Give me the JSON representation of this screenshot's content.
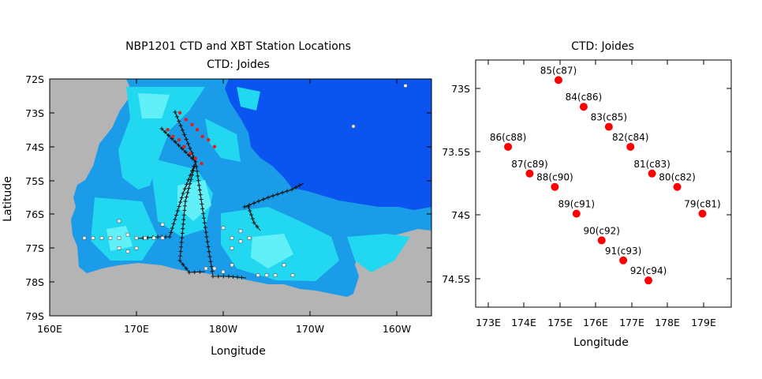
{
  "left_panel": {
    "title_line1": "NBP1201 CTD and XBT Station Locations",
    "title_line2": "CTD: Joides",
    "xlabel": "Longitude",
    "ylabel": "Latitude",
    "xticks": [
      "160E",
      "170E",
      "180W",
      "170W",
      "160W"
    ],
    "yticks": [
      "72S",
      "73S",
      "74S",
      "75S",
      "76S",
      "77S",
      "78S",
      "79S"
    ],
    "colors": {
      "land": "#b4b4b4",
      "open_ocean": "#0a54f0",
      "shelf": "#22d8f0",
      "ctd_selected": "#e02020",
      "ctd_track": "#000000",
      "xbt": "#ffffff"
    }
  },
  "right_panel": {
    "title": "CTD: Joides",
    "xlabel": "Longitude",
    "xticks": [
      "173E",
      "174E",
      "175E",
      "176E",
      "177E",
      "178E",
      "179E"
    ],
    "yticks": [
      "73S",
      "73.5S",
      "74S",
      "74.5S"
    ]
  },
  "chart_data": [
    {
      "type": "scatter",
      "title": "NBP1201 CTD and XBT Station Locations",
      "subtitle": "CTD: Joides",
      "xlabel": "Longitude",
      "ylabel": "Latitude",
      "xlim": [
        160,
        204
      ],
      "ylim": [
        -79,
        -72
      ],
      "x_units": "degrees east (360 convention)",
      "grid": false,
      "series": [
        {
          "name": "CTD: Joides",
          "x": [
            175.0,
            175.7,
            176.4,
            177.0,
            177.6,
            178.3,
            179.0,
            173.6,
            174.2,
            174.9,
            175.5,
            176.2,
            176.8,
            177.5
          ],
          "y": [
            -73.0,
            -73.2,
            -73.35,
            -73.5,
            -73.7,
            -73.8,
            -74.0,
            -73.5,
            -73.7,
            -73.8,
            -74.0,
            -74.2,
            -74.35,
            -74.5
          ]
        },
        {
          "name": "XBT",
          "x": [
            201,
            195,
            164,
            165,
            166,
            167,
            168,
            168,
            168,
            169,
            169,
            170,
            170,
            171,
            172,
            173,
            173,
            180,
            181,
            181,
            182,
            182,
            183,
            178,
            179,
            180,
            181,
            184,
            185,
            186,
            187,
            188
          ],
          "y": [
            -72.2,
            -73.4,
            -76.7,
            -76.7,
            -76.7,
            -76.7,
            -76.2,
            -76.7,
            -77.0,
            -76.6,
            -77.1,
            -76.7,
            -77.0,
            -76.7,
            -76.7,
            -76.7,
            -76.3,
            -76.4,
            -76.7,
            -77.0,
            -76.5,
            -76.8,
            -76.7,
            -77.6,
            -77.6,
            -77.7,
            -77.5,
            -77.8,
            -77.8,
            -77.8,
            -77.5,
            -77.8
          ]
        }
      ]
    },
    {
      "type": "scatter",
      "title": "CTD: Joides",
      "xlabel": "Longitude",
      "xlim": [
        172.7,
        179.8
      ],
      "ylim": [
        -74.7,
        -72.85
      ],
      "grid": false,
      "series": [
        {
          "name": "CTD: Joides",
          "x": [
            179.0,
            178.3,
            177.6,
            177.0,
            176.4,
            175.7,
            175.0,
            173.6,
            174.2,
            174.9,
            175.5,
            176.2,
            176.8,
            177.5
          ],
          "y": [
            -74.0,
            -73.8,
            -73.7,
            -73.5,
            -73.35,
            -73.2,
            -73.0,
            -73.5,
            -73.7,
            -73.8,
            -74.0,
            -74.2,
            -74.35,
            -74.5
          ],
          "labels": [
            "79(c81)",
            "80(c82)",
            "81(c83)",
            "82(c84)",
            "83(c85)",
            "84(c86)",
            "85(c87)",
            "86(c88)",
            "87(c89)",
            "88(c90)",
            "89(c91)",
            "90(c92)",
            "91(c93)",
            "92(c94)"
          ]
        }
      ]
    }
  ]
}
